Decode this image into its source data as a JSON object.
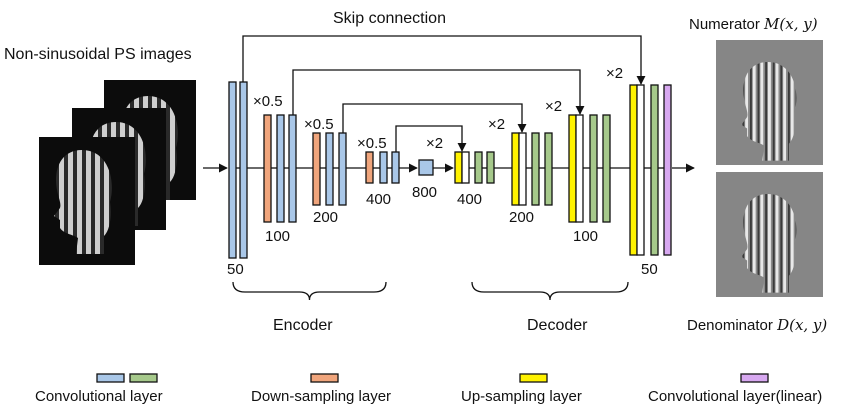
{
  "title": "Skip connection",
  "input_label": "Non-sinusoidal PS images",
  "outputs": {
    "numerator": {
      "text": "Numerator",
      "symbol": "M(x, y)"
    },
    "denominator": {
      "text": "Denominator",
      "symbol": "D(x, y)"
    }
  },
  "scale_labels": {
    "down": "×0.5",
    "up": "×2"
  },
  "channel_counts": [
    "50",
    "100",
    "200",
    "400",
    "800",
    "400",
    "200",
    "100",
    "50"
  ],
  "groups": {
    "encoder": "Encoder",
    "decoder": "Decoder"
  },
  "legend": [
    {
      "label": "Convolutional layer",
      "colors": [
        "#a9c7e8",
        "#a6c98b"
      ]
    },
    {
      "label": "Down-sampling layer",
      "colors": [
        "#f0a57c"
      ]
    },
    {
      "label": "Up-sampling layer",
      "colors": [
        "#fff200"
      ]
    },
    {
      "label": "Convolutional layer(linear)",
      "colors": [
        "#d7a8f0"
      ]
    }
  ],
  "colors": {
    "conv_blue": "#a9c7e8",
    "conv_green": "#a6c98b",
    "down": "#f0a57c",
    "up": "#fff200",
    "linear": "#d7a8f0"
  }
}
